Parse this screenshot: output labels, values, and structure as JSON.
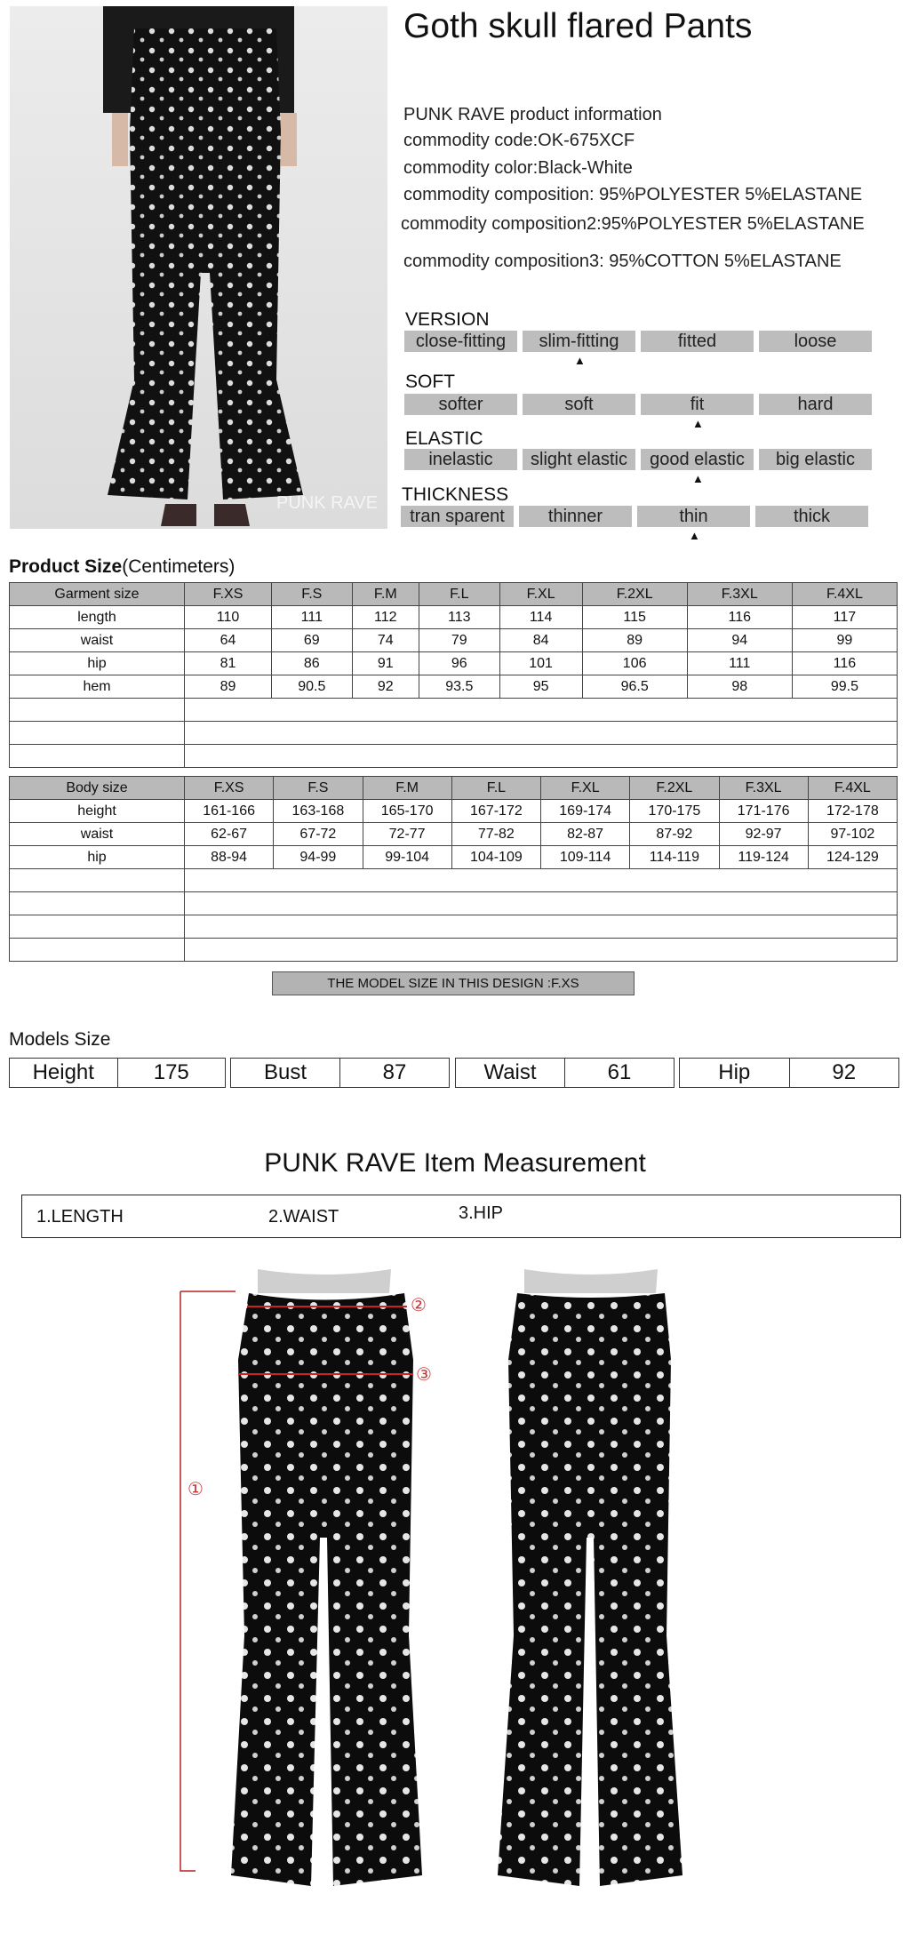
{
  "product": {
    "title": "Goth skull flared Pants",
    "brand_line": "PUNK RAVE product information",
    "photo_watermark": "PUNK RAVE",
    "info": [
      {
        "label": "commodity code:",
        "value": "OK-675XCF"
      },
      {
        "label": "commodity color:",
        "value": "Black-White"
      },
      {
        "label": "commodity composition:",
        "value": " 95%POLYESTER 5%ELASTANE"
      },
      {
        "label": "commodity composition2:",
        "value": "95%POLYESTER 5%ELASTANE"
      },
      {
        "label": "commodity composition3:",
        "value": " 95%COTTON 5%ELASTANE"
      }
    ]
  },
  "attributes": [
    {
      "name": "VERSION",
      "options": [
        "close-fitting",
        "slim-fitting",
        "fitted",
        "loose"
      ],
      "selected": 1
    },
    {
      "name": "SOFT",
      "options": [
        "softer",
        "soft",
        "fit",
        "hard"
      ],
      "selected": 2
    },
    {
      "name": "ELASTIC",
      "options": [
        "inelastic",
        "slight elastic",
        "good elastic",
        "big elastic"
      ],
      "selected": 2
    },
    {
      "name": "THICKNESS",
      "options": [
        "tran sparent",
        "thinner",
        "thin",
        "thick"
      ],
      "selected": 2
    }
  ],
  "product_size": {
    "heading_bold": "Product Size",
    "heading_unit": "(Centimeters)",
    "header": [
      "Garment size",
      "F.XS",
      "F.S",
      "F.M",
      "F.L",
      "F.XL",
      "F.2XL",
      "F.3XL",
      "F.4XL"
    ],
    "rows": [
      [
        "length",
        "110",
        "111",
        "112",
        "113",
        "114",
        "115",
        "116",
        "117"
      ],
      [
        "waist",
        "64",
        "69",
        "74",
        "79",
        "84",
        "89",
        "94",
        "99"
      ],
      [
        "hip",
        "81",
        "86",
        "91",
        "96",
        "101",
        "106",
        "111",
        "116"
      ],
      [
        "hem",
        "89",
        "90.5",
        "92",
        "93.5",
        "95",
        "96.5",
        "98",
        "99.5"
      ]
    ],
    "blank_rows": 3
  },
  "body_size": {
    "header": [
      "Body size",
      "F.XS",
      "F.S",
      "F.M",
      "F.L",
      "F.XL",
      "F.2XL",
      "F.3XL",
      "F.4XL"
    ],
    "rows": [
      [
        "height",
        "161-166",
        "163-168",
        "165-170",
        "167-172",
        "169-174",
        "170-175",
        "171-176",
        "172-178"
      ],
      [
        "waist",
        "62-67",
        "67-72",
        "72-77",
        "77-82",
        "82-87",
        "87-92",
        "92-97",
        "97-102"
      ],
      [
        "hip",
        "88-94",
        "94-99",
        "99-104",
        "104-109",
        "109-114",
        "114-119",
        "119-124",
        "124-129"
      ]
    ],
    "blank_rows": 4
  },
  "model_size_banner": "THE MODEL SIZE IN THIS DESIGN :F.XS",
  "models_size": {
    "title": "Models Size",
    "items": [
      {
        "label": "Height",
        "value": "175"
      },
      {
        "label": "Bust",
        "value": "87"
      },
      {
        "label": "Waist",
        "value": "61"
      },
      {
        "label": "Hip",
        "value": "92"
      }
    ]
  },
  "measurement": {
    "title": "PUNK RAVE Item  Measurement",
    "labels": [
      "1.LENGTH",
      "2.WAIST",
      "3.HIP"
    ],
    "markers": [
      "①",
      "②",
      "③"
    ],
    "marker_color": "#cc3333"
  },
  "colors": {
    "bar_gray": "#bdbdbd",
    "header_gray": "#b9b9b9"
  }
}
